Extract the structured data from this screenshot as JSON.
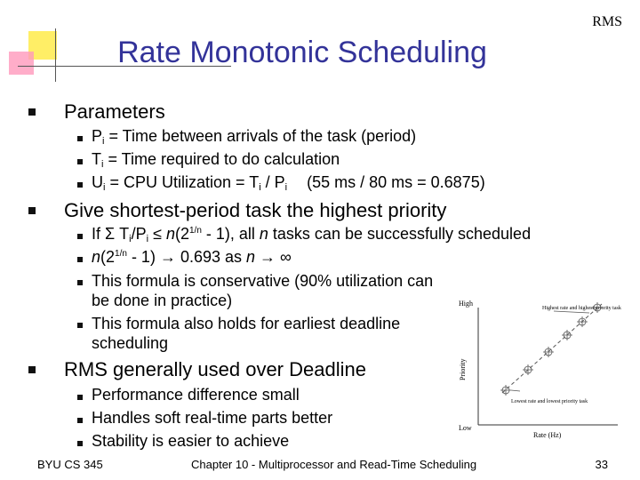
{
  "header": {
    "corner": "RMS",
    "title": "Rate Monotonic Scheduling"
  },
  "bullets": [
    {
      "text": "Parameters",
      "items": [
        [
          "P",
          "i",
          " = Time between arrivals of the task (period)"
        ],
        [
          "T",
          "i",
          " = Time required to do calculation"
        ],
        [
          "U",
          "i",
          " = CPU Utilization = T",
          "i",
          " / P",
          "i",
          "(55 ms / 80 ms = 0.6875)"
        ]
      ]
    },
    {
      "text": "Give shortest-period task the highest priority",
      "items": [
        [
          "If Σ T",
          "i",
          "/P",
          "i",
          " ≤ ",
          "n",
          "(2",
          "1/n",
          " - 1), all ",
          "n",
          " tasks can be successfully scheduled"
        ],
        [
          "n",
          "(2",
          "1/n",
          " - 1) → 0.693 as ",
          "n",
          " → ∞"
        ],
        [
          "This formula is conservative (90% utilization can be done in practice)"
        ],
        [
          "This formula also holds for earliest deadline scheduling"
        ]
      ]
    },
    {
      "text": "RMS generally used over Deadline",
      "items": [
        [
          "Performance difference small"
        ],
        [
          "Handles soft real-time parts better"
        ],
        [
          "Stability is easier to achieve"
        ]
      ]
    }
  ],
  "figure": {
    "high": "High",
    "low": "Low",
    "y_axis": "Priority",
    "x_axis": "Rate (Hz)",
    "top_note": "Highest rate and highest priority task",
    "bottom_note": "Lowest rate and lowest priority task"
  },
  "footer": {
    "left": "BYU CS 345",
    "center": "Chapter 10 - Multiprocessor and Read-Time Scheduling",
    "page": "33"
  }
}
